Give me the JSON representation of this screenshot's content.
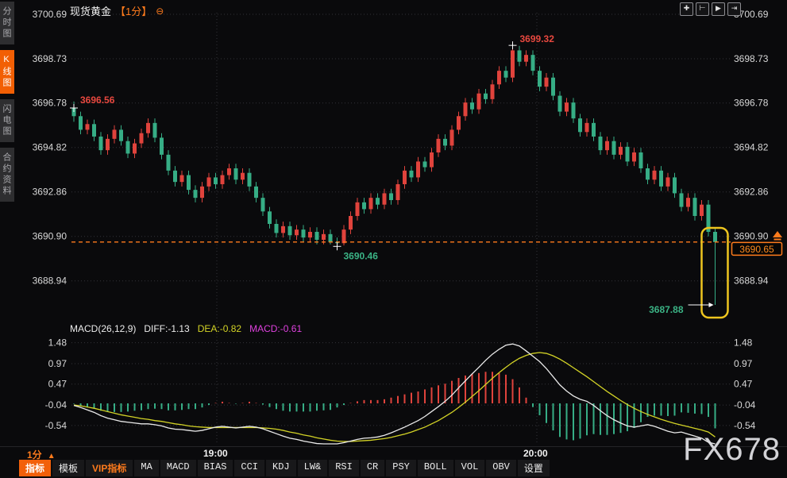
{
  "header": {
    "title": "现货黄金",
    "interval_tag": "【1分】",
    "collapse_glyph": "⊖"
  },
  "sidebar": {
    "items": [
      {
        "label": "分时图",
        "active": false
      },
      {
        "label": "K线图",
        "active": true
      },
      {
        "label": "闪电图",
        "active": false
      },
      {
        "label": "合约资料",
        "active": false
      }
    ]
  },
  "top_icons": [
    {
      "name": "pan-crosshair-icon",
      "glyph": "✚"
    },
    {
      "name": "price-scale-icon",
      "glyph": "⊢"
    },
    {
      "name": "auto-scroll-icon",
      "glyph": "▶"
    },
    {
      "name": "move-to-latest-icon",
      "glyph": "⇥"
    }
  ],
  "colors": {
    "up": "#e0433c",
    "down": "#36ad85",
    "accent": "#ff7b1c",
    "tag_text": "#ff8a1e",
    "box_yellow": "#eec51f",
    "diff_line": "#eaeaea",
    "dea_line": "#d3d326",
    "grid": "#333338",
    "axis_text": "#d8d8d8",
    "ann_red": "#e8483f",
    "ann_green": "#3bb385"
  },
  "footer": {
    "interval_label": "1分",
    "interval_arrow": "▲",
    "tabs": [
      {
        "label": "指标",
        "active": true
      },
      {
        "label": "模板"
      },
      {
        "label": "VIP指标",
        "vip": true
      },
      {
        "label": "MA"
      },
      {
        "label": "MACD"
      },
      {
        "label": "BIAS"
      },
      {
        "label": "CCI"
      },
      {
        "label": "KDJ"
      },
      {
        "label": "LW&"
      },
      {
        "label": "RSI"
      },
      {
        "label": "CR"
      },
      {
        "label": "PSY"
      },
      {
        "label": "BOLL"
      },
      {
        "label": "VOL"
      },
      {
        "label": "OBV"
      },
      {
        "label": "设置"
      }
    ]
  },
  "watermark": "FX678",
  "chart_data": {
    "type": "candlestick",
    "title": "现货黄金 1分",
    "x_ticks": [
      {
        "label": "19:00",
        "x": 273
      },
      {
        "label": "20:00",
        "x": 676
      }
    ],
    "main": {
      "y_ticks": [
        "3700.69",
        "3698.73",
        "3696.78",
        "3694.82",
        "3692.86",
        "3690.90",
        "3688.94"
      ],
      "annotations": {
        "open": {
          "idx": 0,
          "text": "3696.56"
        },
        "high": {
          "idx": 65,
          "text": "3699.32"
        },
        "low": {
          "idx": 39,
          "text": "3690.46"
        },
        "min": {
          "idx": 95,
          "text": "3687.88"
        },
        "last_price": "3690.65"
      },
      "candles": [
        [
          3696.56,
          3696.85,
          3695.95,
          3696.2
        ],
        [
          3696.2,
          3696.4,
          3695.4,
          3695.6
        ],
        [
          3695.6,
          3696.05,
          3695.4,
          3695.85
        ],
        [
          3695.85,
          3696.05,
          3695.1,
          3695.3
        ],
        [
          3695.3,
          3695.5,
          3694.5,
          3694.7
        ],
        [
          3694.7,
          3695.4,
          3694.5,
          3695.2
        ],
        [
          3695.2,
          3695.8,
          3695.0,
          3695.6
        ],
        [
          3695.6,
          3695.8,
          3694.9,
          3695.1
        ],
        [
          3695.1,
          3695.3,
          3694.35,
          3694.55
        ],
        [
          3694.55,
          3695.2,
          3694.35,
          3695.0
        ],
        [
          3695.0,
          3695.65,
          3694.8,
          3695.45
        ],
        [
          3695.45,
          3696.1,
          3695.25,
          3695.9
        ],
        [
          3695.9,
          3696.1,
          3695.05,
          3695.25
        ],
        [
          3695.25,
          3695.45,
          3694.3,
          3694.5
        ],
        [
          3694.5,
          3694.7,
          3693.6,
          3693.8
        ],
        [
          3693.8,
          3694.0,
          3693.1,
          3693.3
        ],
        [
          3693.3,
          3693.8,
          3693.1,
          3693.6
        ],
        [
          3693.6,
          3693.8,
          3692.75,
          3692.95
        ],
        [
          3692.95,
          3693.15,
          3692.4,
          3692.6
        ],
        [
          3692.6,
          3693.3,
          3692.4,
          3693.1
        ],
        [
          3693.1,
          3693.7,
          3692.9,
          3693.5
        ],
        [
          3693.5,
          3693.7,
          3693.0,
          3693.2
        ],
        [
          3693.2,
          3693.8,
          3693.0,
          3693.6
        ],
        [
          3693.6,
          3694.1,
          3693.4,
          3693.9
        ],
        [
          3693.9,
          3694.1,
          3693.2,
          3693.4
        ],
        [
          3693.4,
          3693.9,
          3693.2,
          3693.7
        ],
        [
          3693.7,
          3693.9,
          3692.9,
          3693.1
        ],
        [
          3693.1,
          3693.3,
          3692.4,
          3692.6
        ],
        [
          3692.6,
          3692.8,
          3691.8,
          3692.0
        ],
        [
          3692.0,
          3692.2,
          3691.25,
          3691.45
        ],
        [
          3691.45,
          3691.65,
          3690.85,
          3691.05
        ],
        [
          3691.05,
          3691.55,
          3690.85,
          3691.35
        ],
        [
          3691.35,
          3691.55,
          3690.75,
          3690.95
        ],
        [
          3690.95,
          3691.4,
          3690.75,
          3691.2
        ],
        [
          3691.2,
          3691.4,
          3690.65,
          3690.85
        ],
        [
          3690.85,
          3691.3,
          3690.65,
          3691.1
        ],
        [
          3691.1,
          3691.3,
          3690.55,
          3690.75
        ],
        [
          3690.75,
          3691.2,
          3690.55,
          3691.0
        ],
        [
          3691.0,
          3691.2,
          3690.55,
          3690.65
        ],
        [
          3690.65,
          3690.85,
          3690.46,
          3690.6
        ],
        [
          3690.6,
          3691.4,
          3690.5,
          3691.2
        ],
        [
          3691.2,
          3692.0,
          3691.0,
          3691.8
        ],
        [
          3691.8,
          3692.6,
          3691.6,
          3692.4
        ],
        [
          3692.4,
          3692.6,
          3691.9,
          3692.1
        ],
        [
          3692.1,
          3692.8,
          3691.9,
          3692.6
        ],
        [
          3692.6,
          3692.8,
          3692.1,
          3692.3
        ],
        [
          3692.3,
          3693.0,
          3692.1,
          3692.8
        ],
        [
          3692.8,
          3693.0,
          3692.3,
          3692.5
        ],
        [
          3692.5,
          3693.4,
          3692.3,
          3693.2
        ],
        [
          3693.2,
          3694.0,
          3693.0,
          3693.8
        ],
        [
          3693.8,
          3694.0,
          3693.3,
          3693.5
        ],
        [
          3693.5,
          3694.4,
          3693.3,
          3694.2
        ],
        [
          3694.2,
          3694.4,
          3693.75,
          3693.95
        ],
        [
          3693.95,
          3694.8,
          3693.75,
          3694.6
        ],
        [
          3694.6,
          3695.4,
          3694.4,
          3695.2
        ],
        [
          3695.2,
          3695.4,
          3694.7,
          3694.9
        ],
        [
          3694.9,
          3695.8,
          3694.7,
          3695.6
        ],
        [
          3695.6,
          3696.4,
          3695.4,
          3696.2
        ],
        [
          3696.2,
          3697.0,
          3696.0,
          3696.8
        ],
        [
          3696.8,
          3697.0,
          3696.3,
          3696.5
        ],
        [
          3696.5,
          3697.4,
          3696.3,
          3697.2
        ],
        [
          3697.2,
          3697.4,
          3696.75,
          3696.95
        ],
        [
          3696.95,
          3697.8,
          3696.75,
          3697.6
        ],
        [
          3697.6,
          3698.4,
          3697.4,
          3698.2
        ],
        [
          3698.2,
          3698.4,
          3697.7,
          3697.9
        ],
        [
          3697.9,
          3699.32,
          3697.7,
          3699.1
        ],
        [
          3699.1,
          3699.3,
          3698.4,
          3698.6
        ],
        [
          3698.6,
          3699.1,
          3698.4,
          3698.9
        ],
        [
          3698.9,
          3699.1,
          3698.0,
          3698.2
        ],
        [
          3698.2,
          3698.4,
          3697.3,
          3697.5
        ],
        [
          3697.5,
          3698.1,
          3697.3,
          3697.9
        ],
        [
          3697.9,
          3698.1,
          3696.9,
          3697.1
        ],
        [
          3697.1,
          3697.3,
          3696.2,
          3696.4
        ],
        [
          3696.4,
          3697.0,
          3696.2,
          3696.8
        ],
        [
          3696.8,
          3697.0,
          3695.9,
          3696.1
        ],
        [
          3696.1,
          3696.3,
          3695.3,
          3695.5
        ],
        [
          3695.5,
          3696.1,
          3695.3,
          3695.9
        ],
        [
          3695.9,
          3696.1,
          3695.1,
          3695.3
        ],
        [
          3695.3,
          3695.5,
          3694.5,
          3694.7
        ],
        [
          3694.7,
          3695.3,
          3694.5,
          3695.1
        ],
        [
          3695.1,
          3695.3,
          3694.3,
          3694.5
        ],
        [
          3694.5,
          3695.05,
          3694.3,
          3694.85
        ],
        [
          3694.85,
          3695.05,
          3694.0,
          3694.2
        ],
        [
          3694.2,
          3694.8,
          3694.0,
          3694.6
        ],
        [
          3694.6,
          3694.8,
          3693.7,
          3693.9
        ],
        [
          3693.9,
          3694.1,
          3693.2,
          3693.4
        ],
        [
          3693.4,
          3694.0,
          3693.2,
          3693.8
        ],
        [
          3693.8,
          3694.0,
          3692.9,
          3693.1
        ],
        [
          3693.1,
          3693.7,
          3692.9,
          3693.5
        ],
        [
          3693.5,
          3693.7,
          3692.6,
          3692.8
        ],
        [
          3692.8,
          3693.0,
          3692.0,
          3692.2
        ],
        [
          3692.2,
          3692.8,
          3692.0,
          3692.6
        ],
        [
          3692.6,
          3692.8,
          3691.6,
          3691.8
        ],
        [
          3691.8,
          3692.5,
          3691.6,
          3692.3
        ],
        [
          3692.3,
          3692.5,
          3690.9,
          3691.1
        ],
        [
          3691.1,
          3691.3,
          3687.88,
          3690.65
        ]
      ]
    },
    "macd": {
      "title": "MACD(26,12,9)",
      "diff_label": "DIFF:-1.13",
      "dea_label": "DEA:-0.82",
      "macd_label": "MACD:-0.61",
      "y_ticks": [
        "1.48",
        "0.97",
        "0.47",
        "-0.04",
        "-0.54"
      ],
      "diff": [
        -0.05,
        -0.1,
        -0.16,
        -0.22,
        -0.3,
        -0.36,
        -0.4,
        -0.44,
        -0.46,
        -0.48,
        -0.5,
        -0.5,
        -0.52,
        -0.55,
        -0.6,
        -0.63,
        -0.64,
        -0.66,
        -0.68,
        -0.66,
        -0.62,
        -0.58,
        -0.56,
        -0.58,
        -0.6,
        -0.58,
        -0.56,
        -0.58,
        -0.62,
        -0.68,
        -0.74,
        -0.8,
        -0.85,
        -0.88,
        -0.92,
        -0.95,
        -0.98,
        -1.0,
        -1.02,
        -1.0,
        -0.96,
        -0.92,
        -0.88,
        -0.85,
        -0.84,
        -0.82,
        -0.78,
        -0.72,
        -0.65,
        -0.58,
        -0.5,
        -0.42,
        -0.32,
        -0.2,
        -0.08,
        0.05,
        0.2,
        0.38,
        0.55,
        0.72,
        0.88,
        1.05,
        1.2,
        1.32,
        1.42,
        1.45,
        1.4,
        1.28,
        1.15,
        1.02,
        0.85,
        0.65,
        0.45,
        0.3,
        0.18,
        0.1,
        0.05,
        -0.05,
        -0.18,
        -0.3,
        -0.4,
        -0.48,
        -0.55,
        -0.58,
        -0.55,
        -0.52,
        -0.56,
        -0.62,
        -0.68,
        -0.72,
        -0.7,
        -0.75,
        -0.8,
        -0.85,
        -0.95,
        -1.13
      ],
      "dea": [
        -0.04,
        -0.06,
        -0.09,
        -0.12,
        -0.16,
        -0.2,
        -0.24,
        -0.28,
        -0.31,
        -0.34,
        -0.37,
        -0.39,
        -0.42,
        -0.44,
        -0.47,
        -0.5,
        -0.52,
        -0.55,
        -0.57,
        -0.58,
        -0.59,
        -0.59,
        -0.59,
        -0.59,
        -0.59,
        -0.59,
        -0.59,
        -0.59,
        -0.6,
        -0.61,
        -0.63,
        -0.66,
        -0.7,
        -0.73,
        -0.77,
        -0.8,
        -0.84,
        -0.87,
        -0.9,
        -0.92,
        -0.93,
        -0.93,
        -0.92,
        -0.91,
        -0.9,
        -0.88,
        -0.86,
        -0.83,
        -0.79,
        -0.75,
        -0.7,
        -0.64,
        -0.58,
        -0.5,
        -0.42,
        -0.32,
        -0.22,
        -0.1,
        0.03,
        0.17,
        0.31,
        0.46,
        0.61,
        0.75,
        0.88,
        1.0,
        1.1,
        1.17,
        1.22,
        1.24,
        1.22,
        1.16,
        1.08,
        0.98,
        0.87,
        0.76,
        0.65,
        0.53,
        0.41,
        0.29,
        0.18,
        0.07,
        -0.03,
        -0.12,
        -0.2,
        -0.27,
        -0.33,
        -0.39,
        -0.44,
        -0.49,
        -0.53,
        -0.57,
        -0.61,
        -0.65,
        -0.7,
        -0.82
      ],
      "histogram": [
        -0.01,
        -0.05,
        -0.09,
        -0.13,
        -0.18,
        -0.21,
        -0.21,
        -0.21,
        -0.2,
        -0.18,
        -0.17,
        -0.14,
        -0.13,
        -0.14,
        -0.17,
        -0.17,
        -0.16,
        -0.14,
        -0.14,
        -0.1,
        -0.04,
        0.01,
        0.04,
        0.01,
        -0.01,
        0.01,
        0.04,
        0.01,
        -0.03,
        -0.09,
        -0.14,
        -0.18,
        -0.2,
        -0.2,
        -0.2,
        -0.2,
        -0.18,
        -0.17,
        -0.16,
        -0.1,
        -0.04,
        0.01,
        0.05,
        0.08,
        0.08,
        0.08,
        0.1,
        0.14,
        0.18,
        0.22,
        0.26,
        0.29,
        0.34,
        0.39,
        0.44,
        0.48,
        0.55,
        0.62,
        0.68,
        0.72,
        0.74,
        0.77,
        0.77,
        0.74,
        0.7,
        0.59,
        0.39,
        0.14,
        -0.09,
        -0.29,
        -0.48,
        -0.66,
        -0.82,
        -0.88,
        -0.9,
        -0.86,
        -0.78,
        -0.75,
        -0.77,
        -0.77,
        -0.75,
        -0.72,
        -0.68,
        -0.6,
        -0.46,
        -0.33,
        -0.3,
        -0.3,
        -0.31,
        -0.3,
        -0.22,
        -0.23,
        -0.25,
        -0.26,
        -0.33,
        -0.61
      ]
    }
  }
}
